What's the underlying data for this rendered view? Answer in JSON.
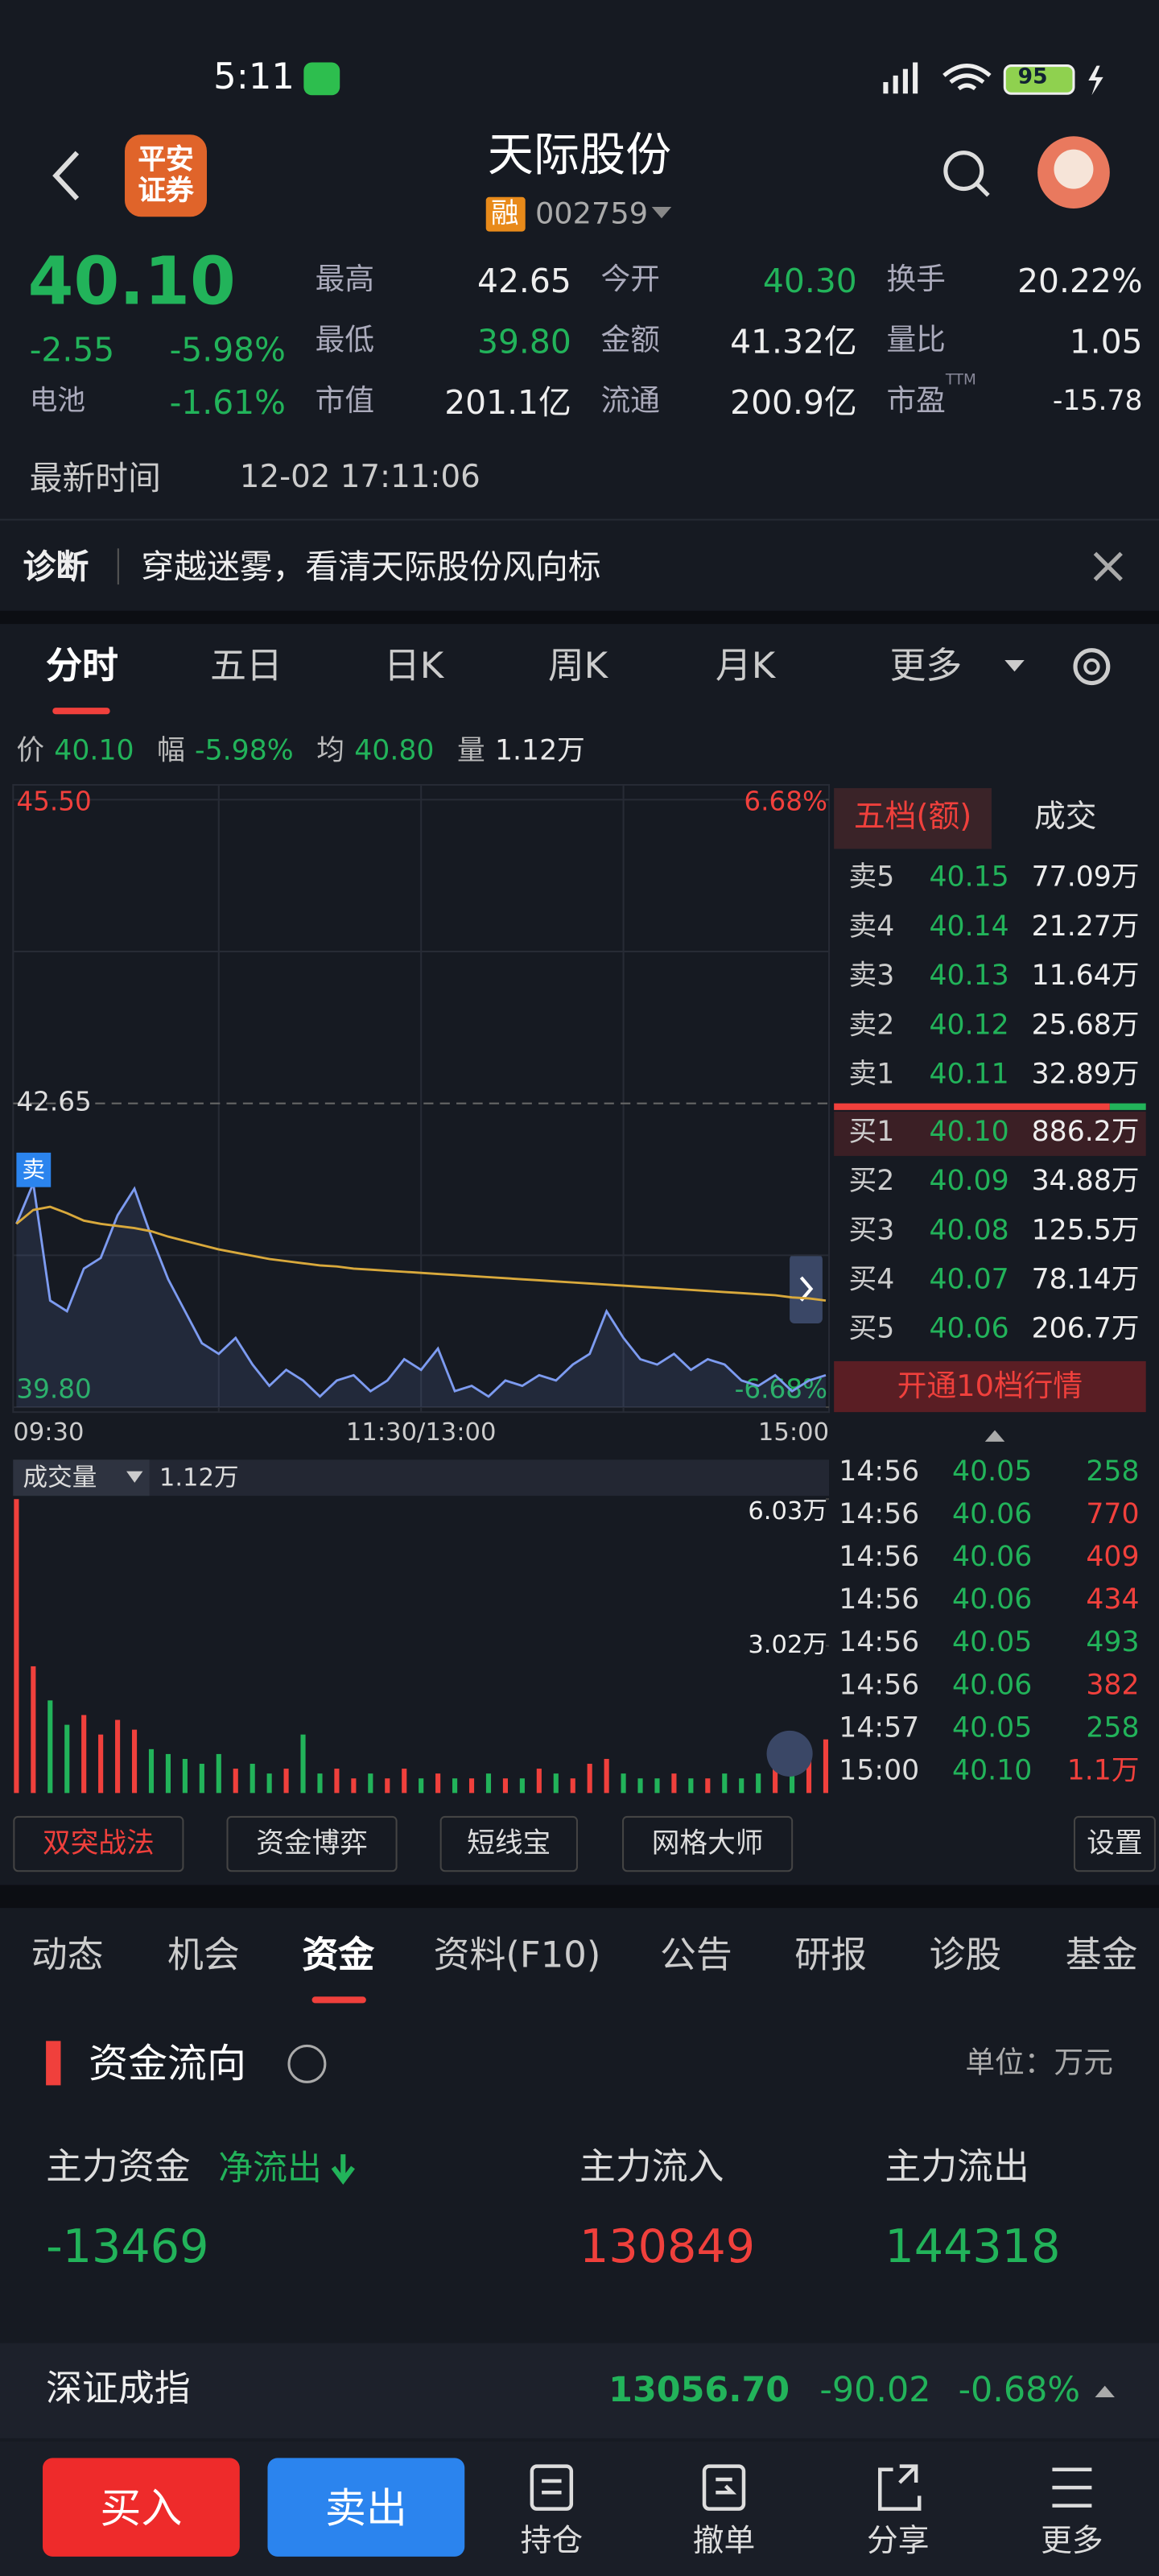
{
  "status_bar": {
    "time": "5:11",
    "battery": "95"
  },
  "header": {
    "logo": [
      "平安",
      "证券"
    ],
    "title": "天际股份",
    "badge": "融",
    "code": "002759"
  },
  "quote": {
    "price": "40.10",
    "change": "-2.55",
    "change_pct": "-5.98%",
    "sector": "电池",
    "sector_pct": "-1.61%",
    "stats": [
      {
        "label": "最高",
        "value": "42.65"
      },
      {
        "label": "今开",
        "value": "40.30",
        "color": "#22b35a"
      },
      {
        "label": "换手",
        "value": "20.22%"
      },
      {
        "label": "最低",
        "value": "39.80",
        "color": "#22b35a"
      },
      {
        "label": "金额",
        "value": "41.32亿"
      },
      {
        "label": "量比",
        "value": "1.05"
      },
      {
        "label": "市值",
        "value": "201.1亿"
      },
      {
        "label": "流通",
        "value": "200.9亿"
      },
      {
        "label": "市盈",
        "value": "-15.78",
        "sup": "TTM"
      }
    ],
    "time_label": "最新时间",
    "time": "12-02 17:11:06"
  },
  "diagnosis": {
    "label": "诊断",
    "text": "穿越迷雾，看清天际股份风向标"
  },
  "chart_tabs": [
    "分时",
    "五日",
    "日K",
    "周K",
    "月K",
    "更多"
  ],
  "summary": [
    {
      "label": "价",
      "value": "40.10",
      "color": "#22b35a"
    },
    {
      "label": "幅",
      "value": "-5.98%",
      "color": "#22b35a"
    },
    {
      "label": "均",
      "value": "40.80",
      "color": "#22b35a"
    },
    {
      "label": "量",
      "value": "1.12万",
      "color": "#e8e8e8"
    }
  ],
  "chart_data": [
    {
      "type": "line",
      "ylim": [
        39.8,
        45.5
      ],
      "yticks": [
        {
          "value": 45.5,
          "label": "45.50"
        },
        42.65,
        {
          "value": 39.8,
          "label": "39.80"
        }
      ],
      "y2lim": [
        -6.68,
        6.68
      ],
      "y2ticks": [
        {
          "value": 6.68,
          "label": "6.68%"
        },
        {
          "value": -6.68,
          "label": "-6.68%"
        }
      ],
      "x_labels": [
        "09:30",
        "11:30/13:00",
        "15:00"
      ],
      "annotation": "卖",
      "series": [
        {
          "color": "#7d9bf0",
          "values": [
            41.52,
            41.9,
            40.8,
            40.7,
            41.1,
            41.2,
            41.6,
            41.85,
            41.4,
            41.0,
            40.7,
            40.4,
            40.3,
            40.45,
            40.2,
            40.0,
            40.15,
            40.05,
            39.9,
            40.05,
            40.1,
            39.95,
            40.05,
            40.25,
            40.15,
            40.35,
            39.95,
            40.0,
            39.9,
            40.05,
            40.0,
            40.1,
            40.05,
            40.2,
            40.3,
            40.7,
            40.45,
            40.25,
            40.2,
            40.3,
            40.15,
            40.25,
            40.2,
            40.05,
            40.0,
            40.1,
            39.95,
            40.05,
            40.1
          ]
        },
        {
          "color": "#d9a93c",
          "values": [
            41.52,
            41.65,
            41.68,
            41.62,
            41.55,
            41.52,
            41.5,
            41.48,
            41.45,
            41.4,
            41.36,
            41.32,
            41.28,
            41.25,
            41.22,
            41.19,
            41.17,
            41.15,
            41.13,
            41.12,
            41.1,
            41.09,
            41.08,
            41.07,
            41.06,
            41.05,
            41.04,
            41.03,
            41.02,
            41.01,
            41.0,
            40.99,
            40.98,
            40.97,
            40.96,
            40.95,
            40.94,
            40.93,
            40.92,
            40.91,
            40.9,
            40.89,
            40.88,
            40.87,
            40.86,
            40.85,
            40.83,
            40.82,
            40.8
          ]
        }
      ]
    },
    {
      "type": "bar",
      "label": "成交量",
      "value_label": "1.12万",
      "ylim": [
        0,
        6.03
      ],
      "yticks": [
        {
          "value": 6.03,
          "label": "6.03万"
        },
        {
          "value": 3.02,
          "label": "3.02万"
        }
      ],
      "values": [
        6.03,
        2.6,
        1.9,
        1.4,
        1.6,
        1.2,
        1.5,
        1.3,
        0.9,
        0.8,
        0.7,
        0.6,
        0.8,
        0.5,
        0.6,
        0.4,
        0.5,
        1.2,
        0.4,
        0.5,
        0.3,
        0.4,
        0.3,
        0.5,
        0.3,
        0.4,
        0.3,
        0.3,
        0.4,
        0.3,
        0.3,
        0.5,
        0.4,
        0.3,
        0.6,
        0.7,
        0.4,
        0.3,
        0.3,
        0.4,
        0.3,
        0.3,
        0.4,
        0.3,
        0.4,
        0.5,
        0.6,
        0.8,
        1.1
      ]
    }
  ],
  "order_book": {
    "tabs": [
      "五档(额)",
      "成交"
    ],
    "asks": [
      {
        "label": "卖5",
        "price": "40.15",
        "amount": "77.09万"
      },
      {
        "label": "卖4",
        "price": "40.14",
        "amount": "21.27万"
      },
      {
        "label": "卖3",
        "price": "40.13",
        "amount": "11.64万"
      },
      {
        "label": "卖2",
        "price": "40.12",
        "amount": "25.68万"
      },
      {
        "label": "卖1",
        "price": "40.11",
        "amount": "32.89万"
      }
    ],
    "bids": [
      {
        "label": "买1",
        "price": "40.10",
        "amount": "886.2万"
      },
      {
        "label": "买2",
        "price": "40.09",
        "amount": "34.88万"
      },
      {
        "label": "买3",
        "price": "40.08",
        "amount": "125.5万"
      },
      {
        "label": "买4",
        "price": "40.07",
        "amount": "78.14万"
      },
      {
        "label": "买5",
        "price": "40.06",
        "amount": "206.7万"
      }
    ],
    "upgrade": "开通10档行情"
  },
  "trades": [
    {
      "time": "14:56",
      "price": "40.05",
      "volume": "258",
      "color": "#22b35a"
    },
    {
      "time": "14:56",
      "price": "40.06",
      "volume": "770",
      "color": "#f0403c"
    },
    {
      "time": "14:56",
      "price": "40.06",
      "volume": "409",
      "color": "#f0403c"
    },
    {
      "time": "14:56",
      "price": "40.06",
      "volume": "434",
      "color": "#f0403c"
    },
    {
      "time": "14:56",
      "price": "40.05",
      "volume": "493",
      "color": "#22b35a"
    },
    {
      "time": "14:56",
      "price": "40.06",
      "volume": "382",
      "color": "#f0403c"
    },
    {
      "time": "14:57",
      "price": "40.05",
      "volume": "258",
      "color": "#22b35a"
    },
    {
      "time": "15:00",
      "price": "40.10",
      "volume": "1.1万",
      "color": "#f0403c"
    }
  ],
  "strategies": [
    "双突战法",
    "资金博弈",
    "短线宝",
    "网格大师"
  ],
  "settings": "设置",
  "section_tabs": [
    "动态",
    "机会",
    "资金",
    "资料(F10)",
    "公告",
    "研报",
    "诊股",
    "基金"
  ],
  "funds": {
    "title": "资金流向",
    "unit": "单位：万元",
    "main_label": "主力资金",
    "main_status": "净流出",
    "main_value": -13469,
    "inflow_label": "主力流入",
    "inflow": 130849,
    "outflow_label": "主力流出",
    "outflow": 144318
  },
  "index": {
    "name": "深证成指",
    "value": "13056.70",
    "change": "-90.02",
    "change_pct": "-0.68%"
  },
  "bottom_bar": {
    "buy": "买入",
    "sell": "卖出",
    "actions": [
      "持仓",
      "撤单",
      "分享",
      "更多"
    ]
  }
}
